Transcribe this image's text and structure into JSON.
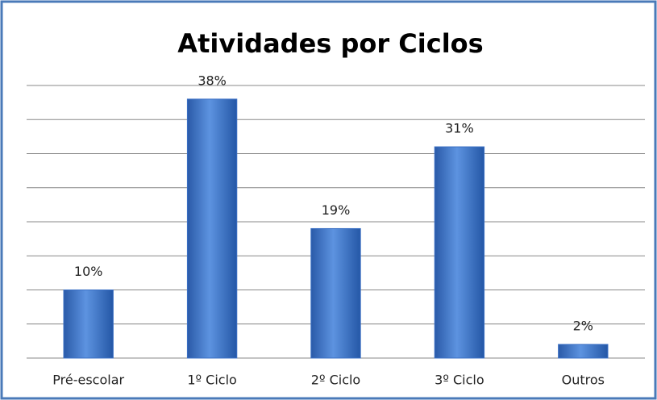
{
  "chart_data": {
    "type": "bar",
    "title": "Atividades por Ciclos",
    "categories": [
      "Pré-escolar",
      "1º Ciclo",
      "2º Ciclo",
      "3º Ciclo",
      "Outros"
    ],
    "values": [
      10,
      38,
      19,
      31,
      2
    ],
    "value_labels": [
      "10%",
      "38%",
      "19%",
      "31%",
      "2%"
    ],
    "color": "#3a6fc4",
    "ylim": [
      0,
      40
    ],
    "yticks": [
      0,
      5,
      10,
      15,
      20,
      25,
      30,
      35,
      40
    ],
    "grid": true
  }
}
